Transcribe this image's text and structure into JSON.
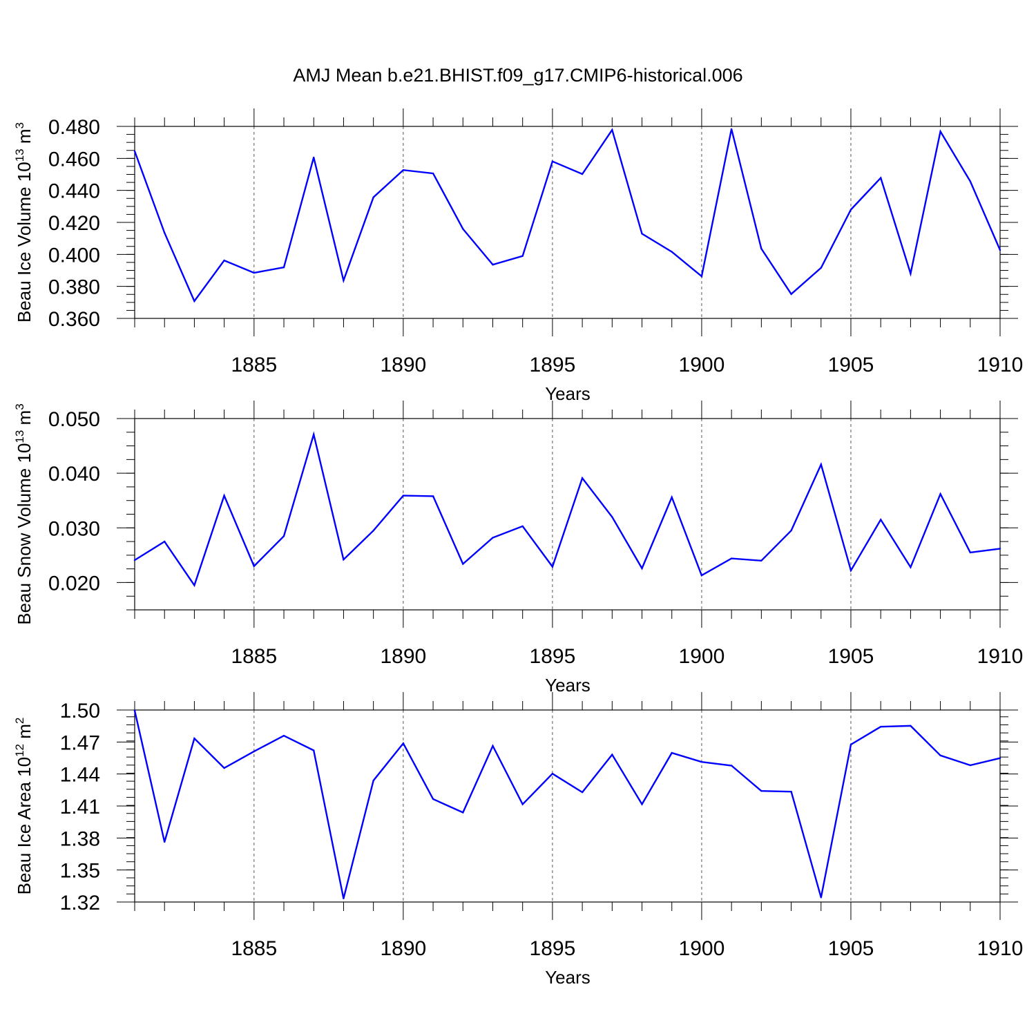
{
  "figure": {
    "title": "AMJ Mean b.e21.BHIST.f09_g17.CMIP6-historical.006",
    "line_color": "#0000ff"
  },
  "chart_data": [
    {
      "type": "line",
      "title": "AMJ Mean b.e21.BHIST.f09_g17.CMIP6-historical.006",
      "xlabel": "Years",
      "ylabel_main": "Beau Ice Volume 10",
      "ylabel_sup": "13",
      "ylabel_unit": " m",
      "ylabel_unit_sup": "3",
      "xlim": [
        1881,
        1910
      ],
      "ylim": [
        0.36,
        0.48
      ],
      "xticks": [
        1885,
        1890,
        1895,
        1900,
        1905,
        1910
      ],
      "xtick_labels": [
        "1885",
        "1890",
        "1895",
        "1900",
        "1905",
        "1910"
      ],
      "yticks": [
        0.36,
        0.38,
        0.4,
        0.42,
        0.44,
        0.46,
        0.48
      ],
      "ytick_labels": [
        "0.360",
        "0.380",
        "0.400",
        "0.420",
        "0.440",
        "0.460",
        "0.480"
      ],
      "grid": "vertical dashed at x ticks",
      "x": [
        1881,
        1882,
        1883,
        1884,
        1885,
        1886,
        1887,
        1888,
        1889,
        1890,
        1891,
        1892,
        1893,
        1894,
        1895,
        1896,
        1897,
        1898,
        1899,
        1900,
        1901,
        1902,
        1903,
        1904,
        1905,
        1906,
        1907,
        1908,
        1909,
        1910
      ],
      "values": [
        0.4645,
        0.4135,
        0.3708,
        0.3962,
        0.3885,
        0.3919,
        0.4606,
        0.3837,
        0.4357,
        0.4527,
        0.4506,
        0.4159,
        0.3936,
        0.399,
        0.4581,
        0.4502,
        0.4778,
        0.4129,
        0.4016,
        0.3863,
        0.4783,
        0.4036,
        0.3752,
        0.3916,
        0.428,
        0.4478,
        0.388,
        0.4768,
        0.4457,
        0.4027
      ]
    },
    {
      "type": "line",
      "xlabel": "Years",
      "ylabel_main": "Beau Snow Volume 10",
      "ylabel_sup": "13",
      "ylabel_unit": " m",
      "ylabel_unit_sup": "3",
      "xlim": [
        1881,
        1910
      ],
      "ylim": [
        0.015,
        0.05
      ],
      "xticks": [
        1885,
        1890,
        1895,
        1900,
        1905,
        1910
      ],
      "xtick_labels": [
        "1885",
        "1890",
        "1895",
        "1900",
        "1905",
        "1910"
      ],
      "yticks": [
        0.02,
        0.03,
        0.04,
        0.05
      ],
      "ytick_labels": [
        "0.020",
        "0.030",
        "0.040",
        "0.050"
      ],
      "grid": "vertical dashed at x ticks",
      "x": [
        1881,
        1882,
        1883,
        1884,
        1885,
        1886,
        1887,
        1888,
        1889,
        1890,
        1891,
        1892,
        1893,
        1894,
        1895,
        1896,
        1897,
        1898,
        1899,
        1900,
        1901,
        1902,
        1903,
        1904,
        1905,
        1906,
        1907,
        1908,
        1909,
        1910
      ],
      "values": [
        0.0241,
        0.0275,
        0.0195,
        0.0359,
        0.023,
        0.0285,
        0.0471,
        0.0242,
        0.0295,
        0.0359,
        0.0358,
        0.0234,
        0.0282,
        0.0303,
        0.0229,
        0.0391,
        0.032,
        0.0226,
        0.0356,
        0.0213,
        0.0244,
        0.024,
        0.0295,
        0.0416,
        0.0222,
        0.0315,
        0.0228,
        0.0362,
        0.0255,
        0.0262
      ]
    },
    {
      "type": "line",
      "xlabel": "Years",
      "ylabel_main": "Beau Ice Area 10",
      "ylabel_sup": "12",
      "ylabel_unit": " m",
      "ylabel_unit_sup": "2",
      "xlim": [
        1881,
        1910
      ],
      "ylim": [
        1.32,
        1.5
      ],
      "xticks": [
        1885,
        1890,
        1895,
        1900,
        1905,
        1910
      ],
      "xtick_labels": [
        "1885",
        "1890",
        "1895",
        "1900",
        "1905",
        "1910"
      ],
      "yticks": [
        1.32,
        1.35,
        1.38,
        1.41,
        1.44,
        1.47,
        1.5
      ],
      "ytick_labels": [
        "1.32",
        "1.35",
        "1.38",
        "1.41",
        "1.44",
        "1.47",
        "1.50"
      ],
      "grid": "vertical dashed at x ticks",
      "x": [
        1881,
        1882,
        1883,
        1884,
        1885,
        1886,
        1887,
        1888,
        1889,
        1890,
        1891,
        1892,
        1893,
        1894,
        1895,
        1896,
        1897,
        1898,
        1899,
        1900,
        1901,
        1902,
        1903,
        1904,
        1905,
        1906,
        1907,
        1908,
        1909,
        1910
      ],
      "values": [
        1.4995,
        1.3763,
        1.4733,
        1.4456,
        1.4612,
        1.4759,
        1.4621,
        1.3233,
        1.4339,
        1.4687,
        1.4165,
        1.4039,
        1.4663,
        1.4116,
        1.4403,
        1.4229,
        1.4582,
        1.4117,
        1.4598,
        1.4513,
        1.4479,
        1.4241,
        1.4235,
        1.3243,
        1.4676,
        1.4843,
        1.4852,
        1.4574,
        1.4482,
        1.4549
      ]
    }
  ]
}
